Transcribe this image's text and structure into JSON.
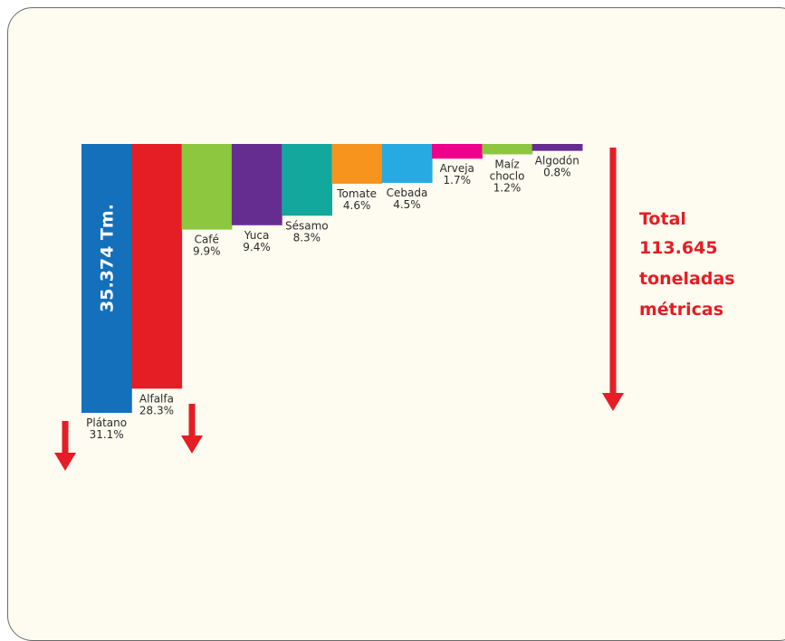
{
  "chart_data": {
    "type": "bar",
    "orientation": "downward",
    "categories": [
      "Plátano",
      "Alfalfa",
      "Café",
      "Yuca",
      "Sésamo",
      "Tomate",
      "Cebada",
      "Arveja",
      "Maíz choclo",
      "Algodón"
    ],
    "values": [
      31.1,
      28.3,
      9.9,
      9.4,
      8.3,
      4.6,
      4.5,
      1.7,
      1.2,
      0.8
    ],
    "value_labels": [
      "31.1%",
      "28.3%",
      "9.9%",
      "9.4%",
      "8.3%",
      "4.6%",
      "4.5%",
      "1.7%",
      "1.2%",
      "0.8%"
    ],
    "colors": [
      "#1470bb",
      "#e51d24",
      "#8dc63f",
      "#662d91",
      "#12a89d",
      "#f7941d",
      "#27aae1",
      "#ec008c",
      "#8dc63f",
      "#662d91"
    ],
    "inner_label": "35.374 Tm.",
    "total_lines": [
      "Total",
      "113.645",
      "toneladas",
      "métricas"
    ],
    "arrow_color": "#e51d24",
    "legend": "none",
    "grid": false
  }
}
